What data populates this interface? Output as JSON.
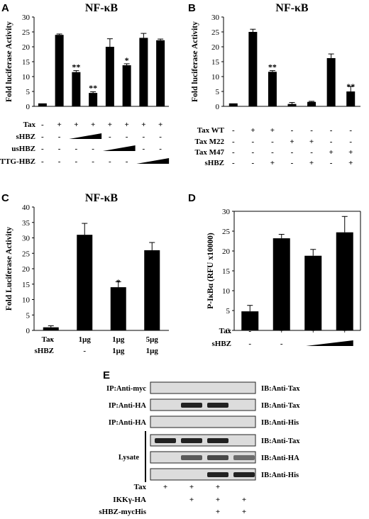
{
  "chart_data": [
    {
      "panel": "A",
      "type": "bar",
      "title": "NF-κB",
      "ylabel": "Fold luciferase Activity",
      "ylim": [
        0,
        30
      ],
      "yticks": [
        0,
        5,
        10,
        15,
        20,
        25,
        30
      ],
      "values": [
        1,
        24,
        11.5,
        4.5,
        20,
        13.8,
        23,
        22.2
      ],
      "errors": [
        0,
        0.3,
        0.5,
        0.4,
        2.7,
        0.5,
        1.5,
        0.4
      ],
      "sig": [
        "",
        "",
        "**",
        "**",
        "",
        "*",
        "",
        ""
      ],
      "rows": [
        {
          "label": "Tax",
          "signs": [
            "-",
            "+",
            "+",
            "+",
            "+",
            "+",
            "+",
            "+"
          ]
        },
        {
          "label": "sHBZ",
          "signs": [
            "-",
            "-",
            "",
            "",
            "-",
            "-",
            "-",
            "-"
          ],
          "ramp": [
            2,
            3
          ]
        },
        {
          "label": "usHBZ",
          "signs": [
            "-",
            "-",
            "-",
            "-",
            "",
            "",
            "-",
            "-"
          ],
          "ramp": [
            4,
            5
          ]
        },
        {
          "label": "TTG-HBZ",
          "signs": [
            "-",
            "-",
            "-",
            "-",
            "-",
            "-",
            "",
            ""
          ],
          "ramp": [
            6,
            7
          ]
        }
      ]
    },
    {
      "panel": "B",
      "type": "bar",
      "title": "NF-κB",
      "ylabel": "Fold luciferase Activity",
      "ylim": [
        0,
        30
      ],
      "yticks": [
        0,
        5,
        10,
        15,
        20,
        25,
        30
      ],
      "values": [
        1,
        25,
        11.6,
        0.8,
        1.5,
        16.2,
        5
      ],
      "errors": [
        0,
        0.9,
        0.4,
        0.5,
        0.2,
        1.4,
        1.7
      ],
      "sig": [
        "",
        "",
        "**",
        "",
        "",
        "",
        "**"
      ],
      "rows": [
        {
          "label": "Tax WT",
          "signs": [
            "-",
            "+",
            "+",
            "-",
            "-",
            "-",
            "-"
          ]
        },
        {
          "label": "Tax M22",
          "signs": [
            "-",
            "-",
            "-",
            "+",
            "+",
            "-",
            "-"
          ]
        },
        {
          "label": "Tax M47",
          "signs": [
            "-",
            "-",
            "-",
            "-",
            "-",
            "+",
            "+"
          ]
        },
        {
          "label": "sHBZ",
          "signs": [
            "-",
            "-",
            "+",
            "-",
            "+",
            "-",
            "+"
          ]
        }
      ]
    },
    {
      "panel": "C",
      "type": "bar",
      "title": "NF-κB",
      "ylabel": "Fold Luciferase Activity",
      "ylim": [
        0,
        40
      ],
      "yticks": [
        0,
        5,
        10,
        15,
        20,
        25,
        30,
        35,
        40
      ],
      "values": [
        1,
        31,
        14,
        26
      ],
      "errors": [
        0.5,
        3.7,
        1.8,
        2.5
      ],
      "sig": [
        "",
        "",
        "*",
        ""
      ],
      "rows": [
        {
          "label": "Tax",
          "signs": [
            "-",
            "1μg",
            "1μg",
            "5μg"
          ]
        },
        {
          "label": "sHBZ",
          "signs": [
            "-",
            "-",
            "1μg",
            "1μg"
          ]
        }
      ]
    },
    {
      "panel": "D",
      "type": "bar",
      "title": "",
      "ylabel": "P-IκBα (RFU x10000)",
      "ylim": [
        0,
        30
      ],
      "yticks": [
        0,
        5,
        10,
        15,
        20,
        25,
        30
      ],
      "values": [
        4.8,
        23.2,
        18.8,
        24.7
      ],
      "errors": [
        1.5,
        1,
        1.6,
        4
      ],
      "sig": [
        "",
        "",
        "",
        ""
      ],
      "rows": [
        {
          "label": "Tax",
          "signs": [
            "-",
            "+",
            "+",
            "+"
          ]
        },
        {
          "label": "sHBZ",
          "signs": [
            "-",
            "-",
            "",
            ""
          ],
          "ramp": [
            2,
            3
          ]
        }
      ]
    }
  ],
  "panel_e": {
    "label": "E",
    "blots": [
      {
        "left": "IP:Anti-myc",
        "right": "IB:Anti-Tax",
        "bands": [
          0,
          0,
          0,
          0
        ]
      },
      {
        "left": "IP:Anti-HA",
        "right": "IB:Anti-Tax",
        "bands": [
          0,
          1,
          1,
          0
        ]
      },
      {
        "left": "IP:Anti-HA",
        "right": "IB:Anti-His",
        "bands": [
          0,
          0,
          0,
          0
        ]
      },
      {
        "left": "",
        "right": "IB:Anti-Tax",
        "bands": [
          1,
          1,
          1,
          0
        ]
      },
      {
        "left": "",
        "right": "IB:Anti-HA",
        "bands": [
          0,
          0.7,
          0.8,
          0.6
        ]
      },
      {
        "left": "",
        "right": "IB:Anti-His",
        "bands": [
          0,
          0,
          1,
          1
        ]
      }
    ],
    "lysate_label": "Lysate",
    "rows": [
      {
        "label": "Tax",
        "signs": [
          "+",
          "+",
          "+",
          ""
        ]
      },
      {
        "label": "IKKγ-HA",
        "signs": [
          "",
          "+",
          "+",
          "+"
        ]
      },
      {
        "label": "sHBZ-mycHis",
        "signs": [
          "",
          "",
          "+",
          "+"
        ]
      }
    ]
  }
}
